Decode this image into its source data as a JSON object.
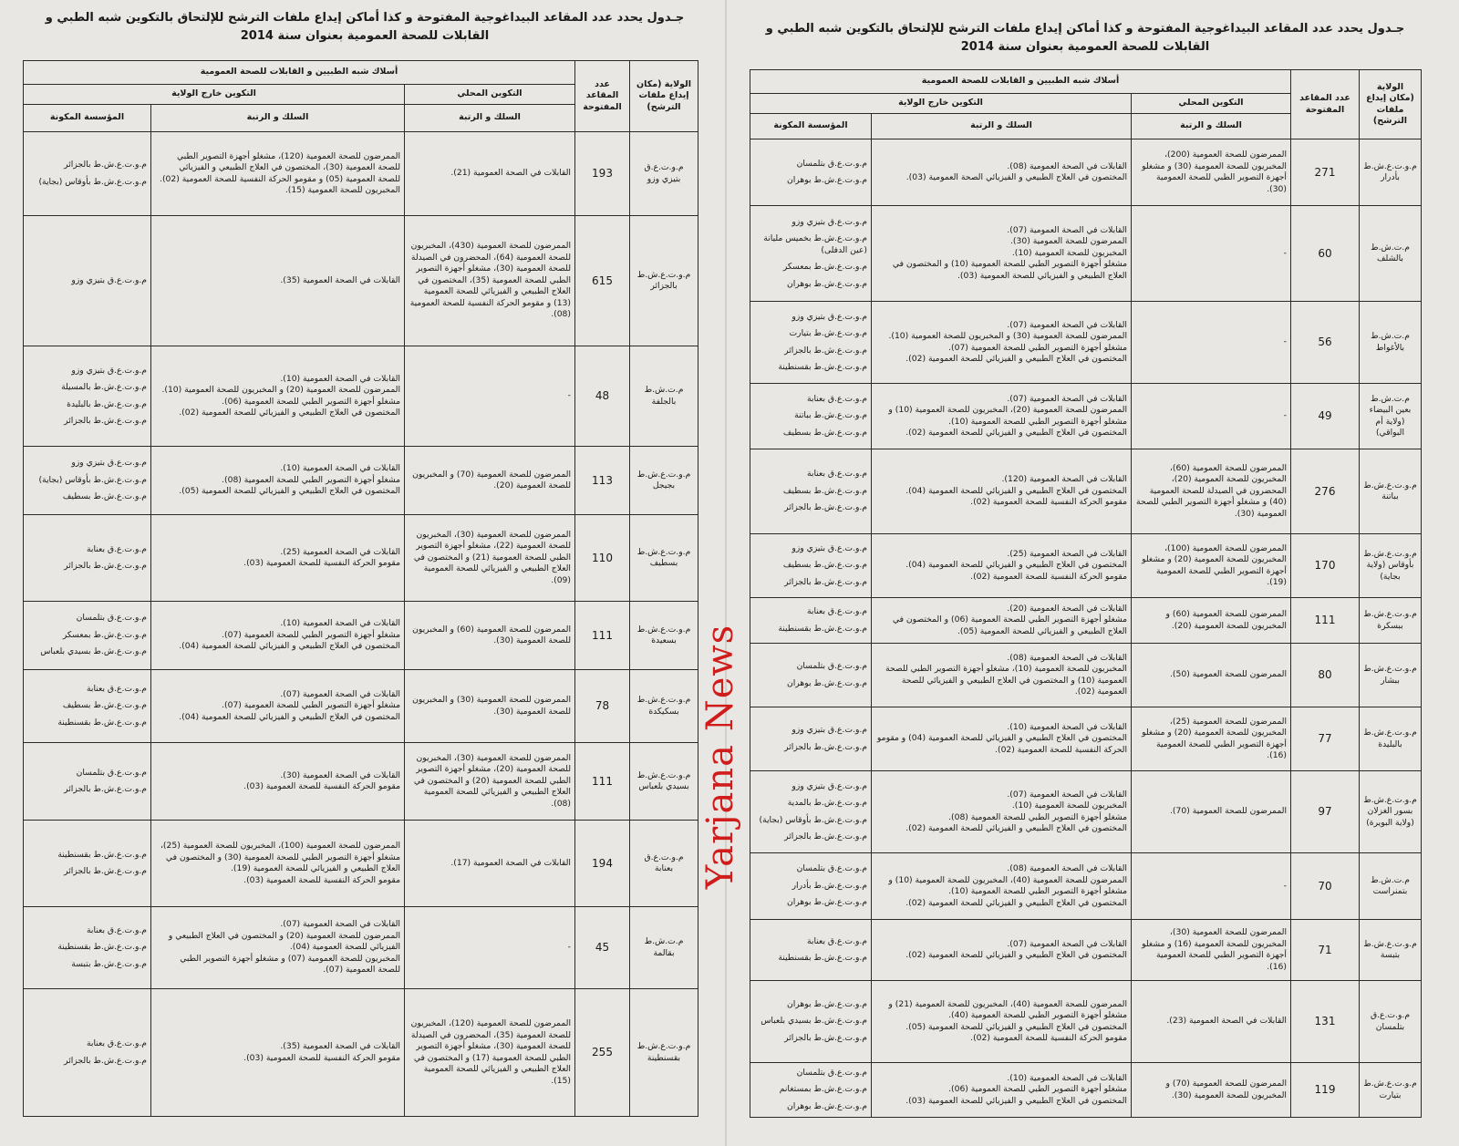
{
  "watermark": "Yarjana News",
  "title": "جـدول يحدد عدد المقاعد البيداغوجية المفتوحة و كذا أماكن إيداع ملفات الترشح للإلتحاق بالتكوين شبه الطبي و القابلات للصحة العمومية بعنوان سنة 2014",
  "headers": {
    "wilaya": "الولاية (مكان إيداع ملفات الترشح)",
    "seats": "عدد المقاعد المفتوحة",
    "corps": "أسلاك شبه الطبيين و القابلات للصحة العمومية",
    "local": "التكوين المحلي",
    "outside": "التكوين خارج الولاية",
    "rank": "السلك و الرتبة",
    "institution": "المؤسسة المكونة"
  },
  "tables": [
    {
      "side": "left",
      "rows": [
        {
          "wilaya": "م.و.ت.ع.ق بتيزي وزو",
          "seats": "193",
          "local": [
            "القابلات في الصحة العمومية (21)."
          ],
          "outside": [
            "الممرضون للصحة العمومية (120)، مشغلو أجهزة التصوير الطبي للصحة العمومية (30)، المختصون في العلاج الطبيعي و الفيزيائي للصحة العمومية (05) و مقومو الحركة النفسية للصحة العمومية (02).",
            "المخبريون للصحة العمومية (15)."
          ],
          "institution": [
            "م.و.ت.ع.ش.ط بالجزائر",
            "م.و.ت.ع.ش.ط بأوقاس (بجاية)"
          ]
        },
        {
          "wilaya": "م.و.ت.ع.ش.ط بالجزائر",
          "seats": "615",
          "local": [
            "الممرضون للصحة العمومية (430)، المخبريون للصحة العمومية (64)، المحضرون في الصيدلة للصحة العمومية (30)، مشغلو أجهزة التصوير الطبي للصحة العمومية (35)، المختصون في العلاج الطبيعي و الفيزيائي للصحة العمومية (13) و مقومو الحركة النفسية للصحة العمومية (08)."
          ],
          "outside": [
            "القابلات في الصحة العمومية (35)."
          ],
          "institution": [
            "م.و.ت.ع.ق بتيزي وزو"
          ]
        },
        {
          "wilaya": "م.ت.ش.ط بالجلفة",
          "seats": "48",
          "local": [
            "-"
          ],
          "outside": [
            "القابلات في الصحة العمومية (10).",
            "الممرضون للصحة العمومية (20) و المخبريون للصحة العمومية (10).",
            "مشغلو أجهزة التصوير الطبي للصحة العمومية (06).",
            "المختصون في العلاج الطبيعي و الفيزيائي للصحة العمومية (02)."
          ],
          "institution": [
            "م.و.ت.ع.ق بتيزي وزو",
            "م.و.ت.ع.ش.ط بالمسيلة",
            "م.و.ت.ع.ش.ط بالبليدة",
            "م.و.ت.ع.ش.ط بالجزائر"
          ]
        },
        {
          "wilaya": "م.و.ت.ع.ش.ط بجيجل",
          "seats": "113",
          "local": [
            "الممرضون للصحة العمومية (70) و المخبريون للصحة العمومية (20)."
          ],
          "outside": [
            "القابلات في الصحة العمومية (10).",
            "مشغلو أجهزة التصوير الطبي للصحة العمومية (08).",
            "المختصون في العلاج الطبيعي و الفيزيائي للصحة العمومية (05)."
          ],
          "institution": [
            "م.و.ت.ع.ق بتيزي وزو",
            "م.و.ت.ع.ش.ط بأوقاس (بجاية)",
            "م.و.ت.ع.ش.ط بسطيف"
          ]
        },
        {
          "wilaya": "م.و.ت.ع.ش.ط بسطيف",
          "seats": "110",
          "local": [
            "الممرضون للصحة العمومية (30)، المخبريون للصحة العمومية (22)، مشغلو أجهزة التصوير الطبي للصحة العمومية (21) و المختصون في العلاج الطبيعي و الفيزيائي للصحة العمومية (09)."
          ],
          "outside": [
            "القابلات في الصحة العمومية (25).",
            "مقومو الحركة النفسية للصحة العمومية (03)."
          ],
          "institution": [
            "م.و.ت.ع.ق بعنابة",
            "م.و.ت.ع.ش.ط بالجزائر"
          ]
        },
        {
          "wilaya": "م.و.ت.ع.ش.ط بسعيدة",
          "seats": "111",
          "local": [
            "الممرضون للصحة العمومية (60) و المخبريون للصحة العمومية (30)."
          ],
          "outside": [
            "القابلات في الصحة العمومية (10).",
            "مشغلو أجهزة التصوير الطبي للصحة العمومية (07).",
            "المختصون في العلاج الطبيعي و الفيزيائي للصحة العمومية (04)."
          ],
          "institution": [
            "م.و.ت.ع.ق بتلمسان",
            "م.و.ت.ع.ش.ط بمعسكر",
            "م.و.ت.ع.ش.ط بسيدي بلعباس"
          ]
        },
        {
          "wilaya": "م.و.ت.ع.ش.ط بسكيكدة",
          "seats": "78",
          "local": [
            "الممرضون للصحة العمومية (30) و المخبريون للصحة العمومية (30)."
          ],
          "outside": [
            "القابلات في الصحة العمومية (07).",
            "مشغلو أجهزة التصوير الطبي للصحة العمومية (07).",
            "المختصون في العلاج الطبيعي و الفيزيائي للصحة العمومية (04)."
          ],
          "institution": [
            "م.و.ت.ع.ق بعنابة",
            "م.و.ت.ع.ش.ط بسطيف",
            "م.و.ت.ع.ش.ط بقسنطينة"
          ]
        },
        {
          "wilaya": "م.و.ت.ع.ش.ط بسيدي بلعباس",
          "seats": "111",
          "local": [
            "الممرضون للصحة العمومية (30)، المخبريون للصحة العمومية (20)، مشغلو أجهزة التصوير الطبي للصحة العمومية (20) و المختصون في العلاج الطبيعي و الفيزيائي للصحة العمومية (08)."
          ],
          "outside": [
            "القابلات في الصحة العمومية (30).",
            "مقومو الحركة النفسية للصحة العمومية (03)."
          ],
          "institution": [
            "م.و.ت.ع.ق بتلمسان",
            "م.و.ت.ع.ش.ط بالجزائر"
          ]
        },
        {
          "wilaya": "م.و.ت.ع.ق بعنابة",
          "seats": "194",
          "local": [
            "القابلات في الصحة العمومية (17)."
          ],
          "outside": [
            "الممرضون للصحة العمومية (100)، المخبريون للصحة العمومية (25)، مشغلو أجهزة التصوير الطبي للصحة العمومية (30) و المختصون في العلاج الطبيعي و الفيزيائي للصحة العمومية (19).",
            "مقومو الحركة النفسية للصحة العمومية (03)."
          ],
          "institution": [
            "م.و.ت.ع.ش.ط بقسنطينة",
            "م.و.ت.ع.ش.ط بالجزائر"
          ]
        },
        {
          "wilaya": "م.ت.ش.ط بقالمة",
          "seats": "45",
          "local": [
            "-"
          ],
          "outside": [
            "القابلات في الصحة العمومية (07).",
            "الممرضون للصحة العمومية (20) و المختصون في العلاج الطبيعي و الفيزيائي للصحة العمومية (04).",
            "المخبريون للصحة العمومية (07) و مشغلو أجهزة التصوير الطبي للصحة العمومية (07)."
          ],
          "institution": [
            "م.و.ت.ع.ق بعنابة",
            "م.و.ت.ع.ش.ط بقسنطينة",
            "م.و.ت.ع.ش.ط بتبسة"
          ]
        },
        {
          "wilaya": "م.و.ت.ع.ش.ط بقسنطينة",
          "seats": "255",
          "local": [
            "الممرضون للصحة العمومية (120)، المخبريون للصحة العمومية (35)، المحضرون في الصيدلة للصحة العمومية (30)، مشغلو أجهزة التصوير الطبي للصحة العمومية (17) و المختصون في العلاج الطبيعي و الفيزيائي للصحة العمومية (15)."
          ],
          "outside": [
            "القابلات في الصحة العمومية (35).",
            "مقومو الحركة النفسية للصحة العمومية (03)."
          ],
          "institution": [
            "م.و.ت.ع.ق بعنابة",
            "م.و.ت.ع.ش.ط بالجزائر"
          ]
        }
      ]
    },
    {
      "side": "right",
      "rows": [
        {
          "wilaya": "م.و.ت.ع.ش.ط بأدرار",
          "seats": "271",
          "local": [
            "الممرضون للصحة العمومية (200)، المخبريون للصحة العمومية (30) و مشغلو أجهزة التصوير الطبي للصحة العمومية (30)."
          ],
          "outside": [
            "القابلات في الصحة العمومية (08).",
            "المختصون في العلاج الطبيعي و الفيزيائي الصحة العمومية (03)."
          ],
          "institution": [
            "م.و.ت.ع.ق بتلمسان",
            "م.و.ت.ع.ش.ط بوهران"
          ]
        },
        {
          "wilaya": "م.ت.ش.ط بالشلف",
          "seats": "60",
          "local": [
            "-"
          ],
          "outside": [
            "القابلات في الصحة العمومية (07).",
            "الممرضون للصحة العمومية (30).",
            "المخبريون للصحة العمومية (10).",
            "مشغلو أجهزة التصوير الطبي للصحة العمومية (10) و المختصون في العلاج الطبيعي و الفيزيائي للصحة العمومية (03)."
          ],
          "institution": [
            "م.و.ت.ع.ق بتيزي وزو",
            "م.و.ت.ع.ش.ط بخميس مليانة (عين الدفلى)",
            "م.و.ت.ع.ش.ط بمعسكر",
            "م.و.ت.ع.ش.ط بوهران"
          ]
        },
        {
          "wilaya": "م.ت.ش.ط بالأغواط",
          "seats": "56",
          "local": [
            "-"
          ],
          "outside": [
            "القابلات في الصحة العمومية (07).",
            "الممرضون للصحة العمومية (30) و المخبريون للصحة العمومية (10).",
            "مشغلو أجهزة التصوير الطبي للصحة العمومية (07).",
            "المختصون في العلاج الطبيعي و الفيزيائي للصحة العمومية (02)."
          ],
          "institution": [
            "م.و.ت.ع.ق بتيزي وزو",
            "م.و.ت.ع.ش.ط بتيارت",
            "م.و.ت.ع.ش.ط بالجزائر",
            "م.و.ت.ع.ش.ط بقسنطينة"
          ]
        },
        {
          "wilaya": "م.ت.ش.ط بعين البيضاء (ولاية أم البواقي)",
          "seats": "49",
          "local": [
            "-"
          ],
          "outside": [
            "القابلات في الصحة العمومية (07).",
            "الممرضون للصحة العمومية (20)، المخبريون للصحة العمومية (10) و مشغلو أجهزة التصوير الطبي للصحة العمومية (10).",
            "المختصون في العلاج الطبيعي و الفيزيائي للصحة العمومية (02)."
          ],
          "institution": [
            "م.و.ت.ع.ق بعنابة",
            "م.و.ت.ع.ش.ط بباتنة",
            "م.و.ت.ع.ش.ط بسطيف"
          ]
        },
        {
          "wilaya": "م.و.ت.ع.ش.ط بباتنة",
          "seats": "276",
          "local": [
            "الممرضون للصحة العمومية (60)، المخبريون للصحة العمومية (20)، المحضرون في الصيدلة للصحة العمومية (40) و مشغلو أجهزة التصوير الطبي للصحة العمومية (30)."
          ],
          "outside": [
            "القابلات في الصحة العمومية (120).",
            "المختصون في العلاج الطبيعي و الفيزيائي للصحة العمومية (04).",
            "مقومو الحركة النفسية للصحة العمومية (02)."
          ],
          "institution": [
            "م.و.ت.ع.ق بعنابة",
            "م.و.ت.ع.ش.ط بسطيف",
            "م.و.ت.ع.ش.ط بالجزائر"
          ]
        },
        {
          "wilaya": "م.و.ت.ع.ش.ط بأوقاس (ولاية بجاية)",
          "seats": "170",
          "local": [
            "الممرضون للصحة العمومية (100)، المخبريون للصحة العمومية (20) و مشغلو أجهزة التصوير الطبي للصحة العمومية (19)."
          ],
          "outside": [
            "القابلات في الصحة العمومية (25).",
            "المختصون في العلاج الطبيعي و الفيزيائي للصحة العمومية (04).",
            "مقومو الحركة النفسية للصحة العمومية (02)."
          ],
          "institution": [
            "م.و.ت.ع.ق بتيزي وزو",
            "م.و.ت.ع.ش.ط بسطيف",
            "م.و.ت.ع.ش.ط بالجزائر"
          ]
        },
        {
          "wilaya": "م.و.ت.ع.ش.ط ببسكرة",
          "seats": "111",
          "local": [
            "الممرضون للصحة العمومية (60) و المخبريون للصحة العمومية (20)."
          ],
          "outside": [
            "القابلات في الصحة العمومية (20).",
            "مشغلو أجهزة التصوير الطبي للصحة العمومية (06) و المختصون في العلاج الطبيعي و الفيزيائي للصحة العمومية (05)."
          ],
          "institution": [
            "م.و.ت.ع.ق بعنابة",
            "م.و.ت.ع.ش.ط بقسنطينة"
          ]
        },
        {
          "wilaya": "م.و.ت.ع.ش.ط ببشار",
          "seats": "80",
          "local": [
            "الممرضون للصحة العمومية (50)."
          ],
          "outside": [
            "القابلات في الصحة العمومية (08).",
            "المخبريون للصحة العمومية (10)، مشغلو أجهزة التصوير الطبي للصحة العمومية (10) و المختصون في العلاج الطبيعي و الفيزيائي للصحة العمومية (02)."
          ],
          "institution": [
            "م.و.ت.ع.ق بتلمسان",
            "م.و.ت.ع.ش.ط بوهران"
          ]
        },
        {
          "wilaya": "م.و.ت.ع.ش.ط بالبليدة",
          "seats": "77",
          "local": [
            "الممرضون للصحة العمومية (25)، المخبريون للصحة العمومية (20) و مشغلو أجهزة التصوير الطبي للصحة العمومية (16)."
          ],
          "outside": [
            "القابلات في الصحة العمومية (10).",
            "المختصون في العلاج الطبيعي و الفيزيائي للصحة العمومية (04) و مقومو الحركة النفسية للصحة العمومية (02)."
          ],
          "institution": [
            "م.و.ت.ع.ق بتيزي وزو",
            "م.و.ت.ع.ش.ط بالجزائر"
          ]
        },
        {
          "wilaya": "م.و.ت.ع.ش.ط بسور الغزلان (ولاية البويرة)",
          "seats": "97",
          "local": [
            "الممرضون للصحة العمومية (70)."
          ],
          "outside": [
            "القابلات في الصحة العمومية (07).",
            "المخبريون للصحة العمومية (10).",
            "مشغلو أجهزة التصوير الطبي للصحة العمومية (08).",
            "المختصون في العلاج الطبيعي و الفيزيائي للصحة العمومية (02)."
          ],
          "institution": [
            "م.و.ت.ع.ق بتيزي وزو",
            "م.و.ت.ع.ش.ط بالمدية",
            "م.و.ت.ع.ش.ط بأوقاس (بجاية)",
            "م.و.ت.ع.ش.ط بالجزائر"
          ]
        },
        {
          "wilaya": "م.ت.ش.ط بتمنراست",
          "seats": "70",
          "local": [
            "-"
          ],
          "outside": [
            "القابلات في الصحة العمومية (08).",
            "الممرضون للصحة العمومية (40)، المخبريون للصحة العمومية (10) و مشغلو أجهزة التصوير الطبي للصحة العمومية (10).",
            "المختصون في العلاج الطبيعي و الفيزيائي للصحة العمومية (02)."
          ],
          "institution": [
            "م.و.ت.ع.ق بتلمسان",
            "م.و.ت.ع.ش.ط بأدرار",
            "م.و.ت.ع.ش.ط بوهران"
          ]
        },
        {
          "wilaya": "م.و.ت.ع.ش.ط بتبسة",
          "seats": "71",
          "local": [
            "الممرضون للصحة العمومية (30)، المخبريون للصحة العمومية (16) و مشغلو أجهزة التصوير الطبي للصحة العمومية (16)."
          ],
          "outside": [
            "القابلات في الصحة العمومية (07).",
            "المختصون في العلاج الطبيعي و الفيزيائي للصحة العمومية (02)."
          ],
          "institution": [
            "م.و.ت.ع.ق بعنابة",
            "م.و.ت.ع.ش.ط بقسنطينة"
          ]
        },
        {
          "wilaya": "م.و.ت.ع.ق بتلمسان",
          "seats": "131",
          "local": [
            "القابلات في الصحة العمومية (23)."
          ],
          "outside": [
            "الممرضون للصحة العمومية (40)، المخبريون للصحة العمومية (21) و مشغلو أجهزة التصوير الطبي للصحة العمومية (40).",
            "المختصون في العلاج الطبيعي و الفيزيائي للصحة العمومية (05).",
            "مقومو الحركة النفسية للصحة العمومية (02)."
          ],
          "institution": [
            "م.و.ت.ع.ش.ط بوهران",
            "م.و.ت.ع.ش.ط بسيدي بلعباس",
            "م.و.ت.ع.ش.ط بالجزائر"
          ]
        },
        {
          "wilaya": "م.و.ت.ع.ش.ط بتيارت",
          "seats": "119",
          "local": [
            "الممرضون للصحة العمومية (70) و المخبريون للصحة العمومية (30)."
          ],
          "outside": [
            "القابلات في الصحة العمومية (10).",
            "مشغلو أجهزة التصوير الطبي للصحة العمومية (06).",
            "المختصون في العلاج الطبيعي و الفيزيائي للصحة العمومية (03)."
          ],
          "institution": [
            "م.و.ت.ع.ق بتلمسان",
            "م.و.ت.ع.ش.ط بمستغانم",
            "م.و.ت.ع.ش.ط بوهران"
          ]
        }
      ]
    }
  ]
}
